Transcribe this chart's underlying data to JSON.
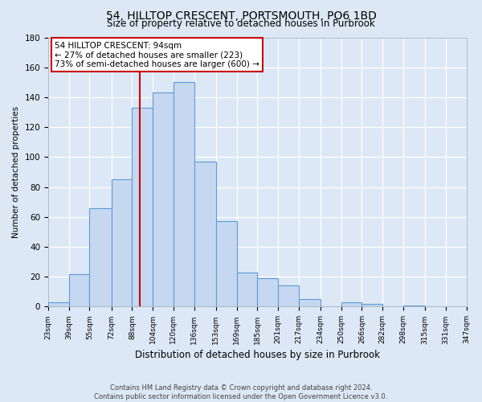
{
  "title": "54, HILLTOP CRESCENT, PORTSMOUTH, PO6 1BD",
  "subtitle": "Size of property relative to detached houses in Purbrook",
  "xlabel": "Distribution of detached houses by size in Purbrook",
  "ylabel": "Number of detached properties",
  "bar_heights": [
    3,
    22,
    66,
    85,
    133,
    143,
    150,
    97,
    57,
    23,
    19,
    14,
    5,
    0,
    3,
    2,
    0,
    1,
    0,
    0
  ],
  "bin_edges": [
    23,
    39,
    55,
    72,
    88,
    104,
    120,
    136,
    153,
    169,
    185,
    201,
    217,
    234,
    250,
    266,
    282,
    298,
    315,
    331,
    347
  ],
  "bar_color": "#c5d8f0",
  "bar_edge_color": "#5b9bd5",
  "property_line_x": 94,
  "annotation_title": "54 HILLTOP CRESCENT: 94sqm",
  "annotation_line1": "← 27% of detached houses are smaller (223)",
  "annotation_line2": "73% of semi-detached houses are larger (600) →",
  "annotation_box_facecolor": "#ffffff",
  "annotation_box_edgecolor": "#cc0000",
  "vline_color": "#cc0000",
  "footer_line1": "Contains HM Land Registry data © Crown copyright and database right 2024.",
  "footer_line2": "Contains public sector information licensed under the Open Government Licence v3.0.",
  "ylim": [
    0,
    180
  ],
  "background_color": "#dce8f5",
  "plot_bg_color": "#dce8f5",
  "tick_labels": [
    "23sqm",
    "39sqm",
    "55sqm",
    "72sqm",
    "88sqm",
    "104sqm",
    "120sqm",
    "136sqm",
    "153sqm",
    "169sqm",
    "185sqm",
    "201sqm",
    "217sqm",
    "234sqm",
    "250sqm",
    "266sqm",
    "282sqm",
    "298sqm",
    "315sqm",
    "331sqm",
    "347sqm"
  ],
  "yticks": [
    0,
    20,
    40,
    60,
    80,
    100,
    120,
    140,
    160,
    180
  ]
}
